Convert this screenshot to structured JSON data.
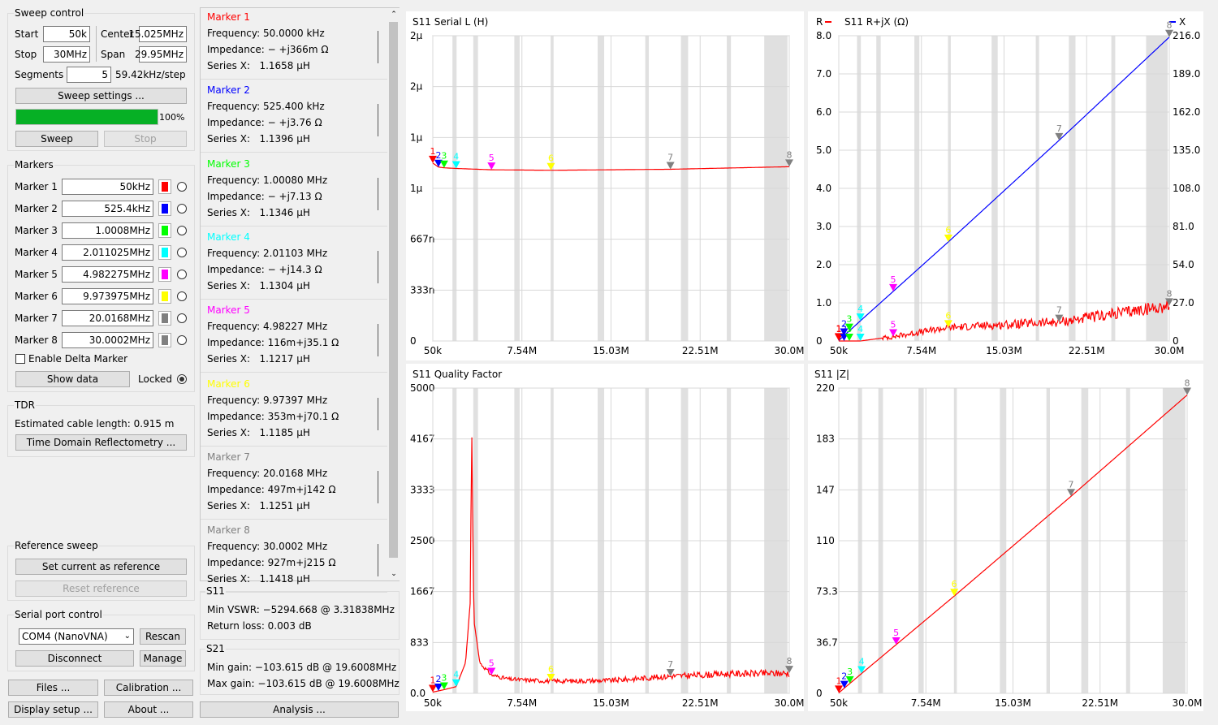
{
  "sweep_control": {
    "title": "Sweep control",
    "start_label": "Start",
    "start_value": "50k",
    "stop_label": "Stop",
    "stop_value": "30MHz",
    "center_label": "Center",
    "center_value": "15.025MHz",
    "span_label": "Span",
    "span_value": "29.95MHz",
    "segments_label": "Segments",
    "segments_value": "5",
    "step_text": "59.42kHz/step",
    "settings_button": "Sweep settings ...",
    "progress": 1.0,
    "progress_text": "100%",
    "sweep_button": "Sweep",
    "stop_button": "Stop"
  },
  "markers": {
    "title": "Markers",
    "items": [
      {
        "label": "Marker 1",
        "value": "50kHz",
        "color": "#ff0000"
      },
      {
        "label": "Marker 2",
        "value": "525.4kHz",
        "color": "#0000ff"
      },
      {
        "label": "Marker 3",
        "value": "1.0008MHz",
        "color": "#00ff00"
      },
      {
        "label": "Marker 4",
        "value": "2.011025MHz",
        "color": "#00ffff"
      },
      {
        "label": "Marker 5",
        "value": "4.982275MHz",
        "color": "#ff00ff"
      },
      {
        "label": "Marker 6",
        "value": "9.973975MHz",
        "color": "#ffff00"
      },
      {
        "label": "Marker 7",
        "value": "20.0168MHz",
        "color": "#808080"
      },
      {
        "label": "Marker 8",
        "value": "30.0002MHz",
        "color": "#808080"
      }
    ],
    "delta_label": "Enable Delta Marker",
    "show_data_button": "Show data",
    "locked_label": "Locked"
  },
  "tdr": {
    "title": "TDR",
    "cable_text": "Estimated cable length: 0.915 m",
    "button": "Time Domain Reflectometry ..."
  },
  "reference": {
    "title": "Reference sweep",
    "set_button": "Set current as reference",
    "reset_button": "Reset reference"
  },
  "serial": {
    "title": "Serial port control",
    "port_value": "COM4 (NanoVNA)",
    "rescan_button": "Rescan",
    "disconnect_button": "Disconnect",
    "manage_button": "Manage"
  },
  "bottom_buttons": {
    "files": "Files ...",
    "calibration": "Calibration ...",
    "display": "Display setup ...",
    "about": "About ...",
    "analysis": "Analysis ..."
  },
  "marker_details": [
    {
      "title": "Marker 1",
      "color": "#ff0000",
      "freq_label": "Frequency:",
      "freq": "50.0000 kHz",
      "imp_label": "Impedance:",
      "imp": "− +j366m Ω",
      "sx_label": "Series X:",
      "sx": "1.1658 μH"
    },
    {
      "title": "Marker 2",
      "color": "#0000ff",
      "freq_label": "Frequency:",
      "freq": "525.400 kHz",
      "imp_label": "Impedance:",
      "imp": "− +j3.76 Ω",
      "sx_label": "Series X:",
      "sx": "1.1396 μH"
    },
    {
      "title": "Marker 3",
      "color": "#00ff00",
      "freq_label": "Frequency:",
      "freq": "1.00080 MHz",
      "imp_label": "Impedance:",
      "imp": "− +j7.13 Ω",
      "sx_label": "Series X:",
      "sx": "1.1346 μH"
    },
    {
      "title": "Marker 4",
      "color": "#00ffff",
      "freq_label": "Frequency:",
      "freq": "2.01103 MHz",
      "imp_label": "Impedance:",
      "imp": "− +j14.3 Ω",
      "sx_label": "Series X:",
      "sx": "1.1304 μH"
    },
    {
      "title": "Marker 5",
      "color": "#ff00ff",
      "freq_label": "Frequency:",
      "freq": "4.98227 MHz",
      "imp_label": "Impedance:",
      "imp": "116m+j35.1 Ω",
      "sx_label": "Series X:",
      "sx": "1.1217 μH"
    },
    {
      "title": "Marker 6",
      "color": "#ffff00",
      "freq_label": "Frequency:",
      "freq": "9.97397 MHz",
      "imp_label": "Impedance:",
      "imp": "353m+j70.1 Ω",
      "sx_label": "Series X:",
      "sx": "1.1185 μH"
    },
    {
      "title": "Marker 7",
      "color": "#808080",
      "freq_label": "Frequency:",
      "freq": "20.0168 MHz",
      "imp_label": "Impedance:",
      "imp": "497m+j142 Ω",
      "sx_label": "Series X:",
      "sx": "1.1251 μH"
    },
    {
      "title": "Marker 8",
      "color": "#808080",
      "freq_label": "Frequency:",
      "freq": "30.0002 MHz",
      "imp_label": "Impedance:",
      "imp": "927m+j215 Ω",
      "sx_label": "Series X:",
      "sx": "1.1418 μH"
    }
  ],
  "s11_info": {
    "title": "S11",
    "vswr_text": "Min VSWR:  −5294.668 @ 3.31838MHz",
    "rl_text": "Return loss: 0.003 dB"
  },
  "s21_info": {
    "title": "S21",
    "min_gain_text": "Min gain:  −103.615 dB @ 19.6008MHz",
    "max_gain_text": "Max gain:  −103.615 dB @ 19.6008MHz"
  },
  "chart_data": [
    {
      "id": "serial_l",
      "type": "line",
      "title": "S11  Serial L (H)",
      "x_range": [
        50000,
        30000000
      ],
      "x_ticks": [
        "50k",
        "7.54M",
        "15.03M",
        "22.51M",
        "30.0M"
      ],
      "y_ticks": [
        "2μ",
        "2μ",
        "1μ",
        "1μ",
        "667n",
        "333n",
        "0"
      ],
      "series": [
        {
          "color": "#ff0000",
          "x": [
            50000,
            525400,
            1000800,
            2011025,
            4982275,
            9973975,
            20016800,
            30000200
          ],
          "y": [
            1.1658,
            1.1396,
            1.1346,
            1.1304,
            1.1217,
            1.1185,
            1.1251,
            1.1418
          ]
        }
      ],
      "ylim": [
        0,
        2.0
      ],
      "markers": [
        {
          "n": "1",
          "x": 50000,
          "y": 1.1658
        },
        {
          "n": "2",
          "x": 525400,
          "y": 1.1396
        },
        {
          "n": "3",
          "x": 1000800,
          "y": 1.1346
        },
        {
          "n": "4",
          "x": 2011025,
          "y": 1.1304
        },
        {
          "n": "5",
          "x": 4982275,
          "y": 1.1217
        },
        {
          "n": "6",
          "x": 9973975,
          "y": 1.1185
        },
        {
          "n": "7",
          "x": 20016800,
          "y": 1.1251
        },
        {
          "n": "8",
          "x": 30000200,
          "y": 1.1418
        }
      ]
    },
    {
      "id": "rjx",
      "type": "line",
      "title": "S11  R+jX (Ω)",
      "legend": [
        "R",
        "X"
      ],
      "x_range": [
        50000,
        30000000
      ],
      "x_ticks": [
        "50k",
        "7.54M",
        "15.03M",
        "22.51M",
        "30.0M"
      ],
      "y_ticks": [
        "8.0",
        "7.0",
        "6.0",
        "5.0",
        "4.0",
        "3.0",
        "2.0",
        "1.0",
        "0"
      ],
      "y2_ticks": [
        "216.0",
        "189.0",
        "162.0",
        "135.0",
        "108.0",
        "81.0",
        "54.0",
        "27.0",
        "0"
      ],
      "ylim": [
        0,
        8.0
      ],
      "y2lim": [
        0,
        216.0
      ],
      "series": [
        {
          "name": "R",
          "color": "#ff0000",
          "axis": "left",
          "x": [
            50000,
            525400,
            1000800,
            2011025,
            4982275,
            9973975,
            20016800,
            30000200
          ],
          "y": [
            0,
            0.0,
            0.0,
            0.0,
            0.116,
            0.353,
            0.497,
            0.927
          ]
        },
        {
          "name": "X",
          "color": "#0000ff",
          "axis": "right",
          "x": [
            50000,
            525400,
            1000800,
            2011025,
            4982275,
            9973975,
            20016800,
            30000200
          ],
          "y": [
            0.366,
            3.76,
            7.13,
            14.3,
            35.1,
            70.1,
            142,
            215
          ]
        }
      ],
      "markers": [
        {
          "n": "1",
          "x": 50000,
          "y": 0.366,
          "axis": "right"
        },
        {
          "n": "2",
          "x": 525400,
          "y": 3.76,
          "axis": "right"
        },
        {
          "n": "3",
          "x": 1000800,
          "y": 7.13,
          "axis": "right"
        },
        {
          "n": "4",
          "x": 2011025,
          "y": 14.3,
          "axis": "right"
        },
        {
          "n": "5",
          "x": 4982275,
          "y": 35.1,
          "axis": "right"
        },
        {
          "n": "6",
          "x": 9973975,
          "y": 70.1,
          "axis": "right"
        },
        {
          "n": "7",
          "x": 20016800,
          "y": 142,
          "axis": "right"
        },
        {
          "n": "8",
          "x": 30000200,
          "y": 215,
          "axis": "right"
        },
        {
          "n": "1",
          "x": 50000,
          "y": 0
        },
        {
          "n": "2",
          "x": 525400,
          "y": 0.0
        },
        {
          "n": "3",
          "x": 1000800,
          "y": 0.0
        },
        {
          "n": "4",
          "x": 2011025,
          "y": 0.0
        },
        {
          "n": "5",
          "x": 4982275,
          "y": 0.116
        },
        {
          "n": "6",
          "x": 9973975,
          "y": 0.353
        },
        {
          "n": "7",
          "x": 20016800,
          "y": 0.497
        },
        {
          "n": "8",
          "x": 30000200,
          "y": 0.927
        }
      ]
    },
    {
      "id": "qf",
      "type": "line",
      "title": "S11  Quality Factor",
      "x_range": [
        50000,
        30000000
      ],
      "x_ticks": [
        "50k",
        "7.54M",
        "15.03M",
        "22.51M",
        "30.0M"
      ],
      "y_ticks": [
        "5000",
        "4167",
        "3333",
        "2500",
        "1667",
        "833",
        "0.0"
      ],
      "ylim": [
        0,
        5000
      ],
      "series": [
        {
          "color": "#ff0000",
          "x": [
            50000,
            1000800,
            2011025,
            2800000,
            3200000,
            3318380,
            3500000,
            4000000,
            4982275,
            6500000,
            9973975,
            15000000,
            20016800,
            25000000,
            30000200
          ],
          "y": [
            20,
            60,
            110,
            500,
            1500,
            4400,
            1200,
            500,
            300,
            230,
            200,
            210,
            280,
            320,
            330
          ]
        }
      ],
      "markers": [
        {
          "n": "1",
          "x": 50000,
          "y": 20
        },
        {
          "n": "2",
          "x": 525400,
          "y": 40
        },
        {
          "n": "3",
          "x": 1000800,
          "y": 60
        },
        {
          "n": "4",
          "x": 2011025,
          "y": 110
        },
        {
          "n": "5",
          "x": 4982275,
          "y": 300
        },
        {
          "n": "6",
          "x": 9973975,
          "y": 200
        },
        {
          "n": "7",
          "x": 20016800,
          "y": 280
        },
        {
          "n": "8",
          "x": 30000200,
          "y": 330
        }
      ]
    },
    {
      "id": "absz",
      "type": "line",
      "title": "S11  |Z|",
      "x_range": [
        50000,
        30000000
      ],
      "x_ticks": [
        "50k",
        "7.54M",
        "15.03M",
        "22.51M",
        "30.0M"
      ],
      "y_ticks": [
        "220",
        "183",
        "147",
        "110",
        "73.3",
        "36.7",
        "0"
      ],
      "ylim": [
        0,
        220
      ],
      "series": [
        {
          "color": "#ff0000",
          "x": [
            50000,
            525400,
            1000800,
            2011025,
            4982275,
            9973975,
            20016800,
            30000200
          ],
          "y": [
            0.366,
            3.76,
            7.13,
            14.3,
            35.1,
            70.1,
            142,
            215
          ]
        }
      ],
      "markers": [
        {
          "n": "1",
          "x": 50000,
          "y": 0.366
        },
        {
          "n": "2",
          "x": 525400,
          "y": 3.76
        },
        {
          "n": "3",
          "x": 1000800,
          "y": 7.13
        },
        {
          "n": "4",
          "x": 2011025,
          "y": 14.3
        },
        {
          "n": "5",
          "x": 4982275,
          "y": 35.1
        },
        {
          "n": "6",
          "x": 9973975,
          "y": 70.1
        },
        {
          "n": "7",
          "x": 20016800,
          "y": 142
        },
        {
          "n": "8",
          "x": 30000200,
          "y": 215
        }
      ]
    }
  ],
  "marker_colors": [
    "#ff0000",
    "#0000ff",
    "#00ff00",
    "#00ffff",
    "#ff00ff",
    "#ffff00",
    "#808080",
    "#808080"
  ]
}
